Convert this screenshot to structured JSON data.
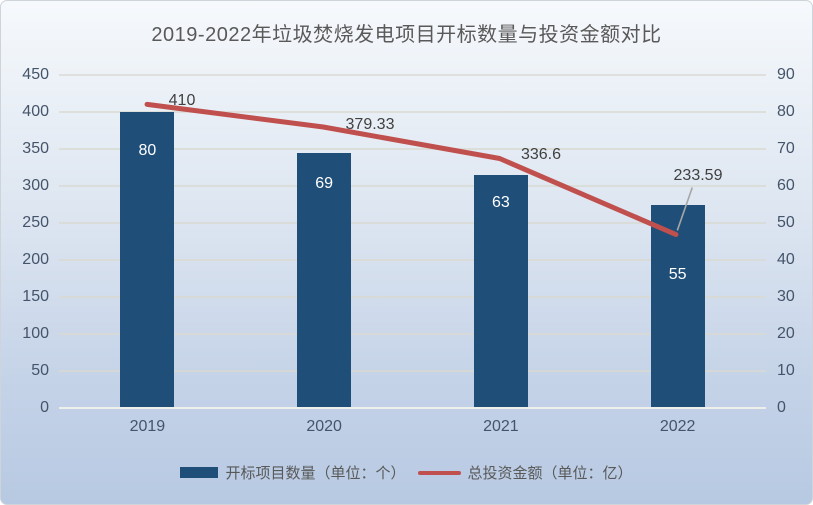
{
  "title": "2019-2022年垃圾焚烧发电项目开标数量与投资金额对比",
  "chart_data": {
    "type": "bar",
    "subtype": "combo-bar-line-dual-axis",
    "title": "2019-2022年垃圾焚烧发电项目开标数量与投资金额对比",
    "categories": [
      "2019",
      "2020",
      "2021",
      "2022"
    ],
    "series": [
      {
        "name": "开标项目数量（单位：个）",
        "type": "bar",
        "axis": "right",
        "color": "#1F4E79",
        "values": [
          80,
          69,
          63,
          55
        ],
        "labels": [
          "80",
          "69",
          "63",
          "55"
        ],
        "label_color": "#FFFFFF"
      },
      {
        "name": "总投资金额（单位：亿）",
        "type": "line",
        "axis": "left",
        "color": "#C0504D",
        "values": [
          410,
          379.33,
          336.6,
          233.59
        ],
        "labels": [
          "410",
          "379.33",
          "336.6",
          "233.59"
        ],
        "label_color": "#404040"
      }
    ],
    "left_axis": {
      "min": 0,
      "max": 450,
      "step": 50,
      "ticks": [
        450,
        400,
        350,
        300,
        250,
        200,
        150,
        100,
        50,
        0
      ]
    },
    "right_axis": {
      "min": 0,
      "max": 90,
      "step": 10,
      "ticks": [
        90,
        80,
        70,
        60,
        50,
        40,
        30,
        20,
        10,
        0
      ]
    },
    "grid": true,
    "legend_position": "bottom",
    "colors": {
      "background_top": "#f6f9fc",
      "background_bottom": "#b7c9e2",
      "gridline": "#d9d9d1",
      "axis_text": "#44546A",
      "title_text": "#595959",
      "leader_line": "#a6a6a6"
    }
  }
}
